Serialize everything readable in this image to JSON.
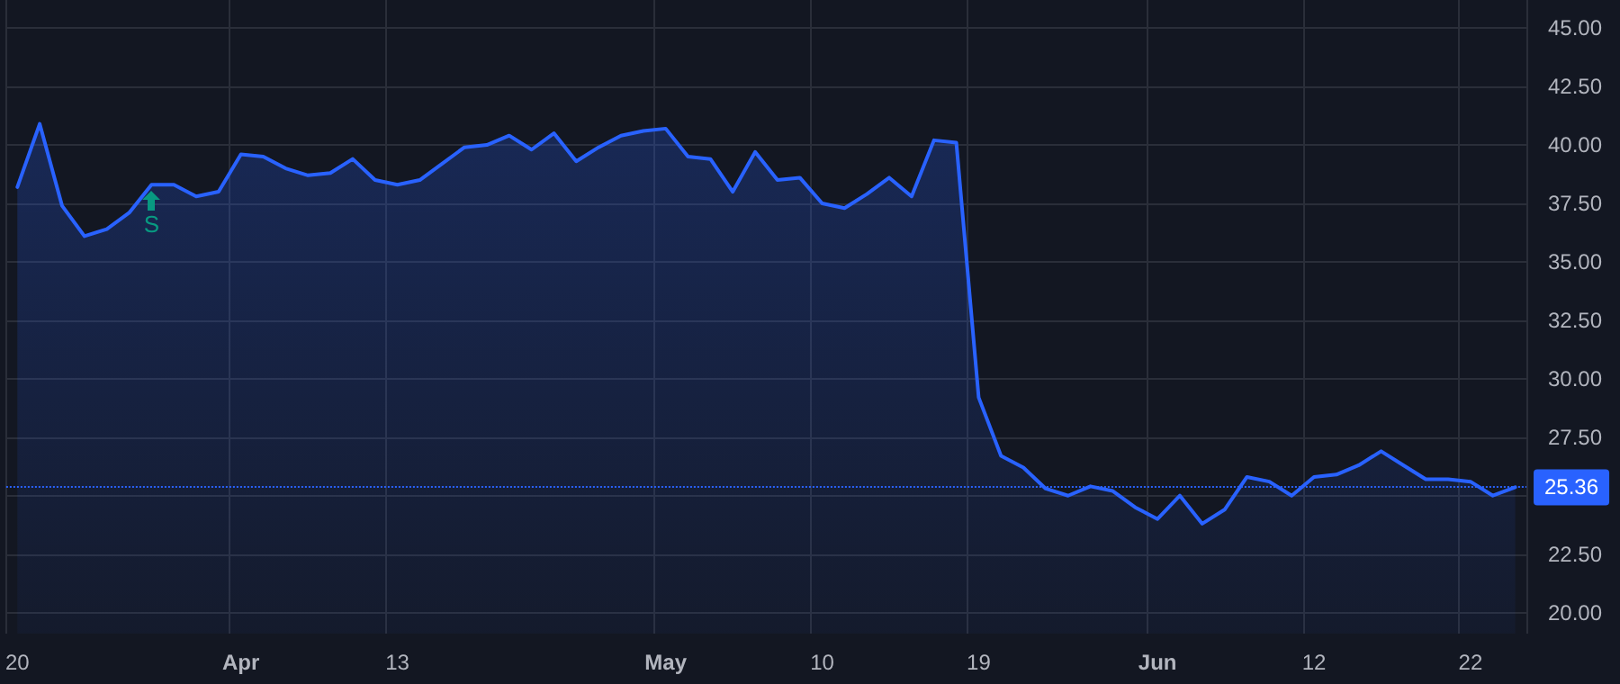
{
  "chart_data": {
    "type": "area",
    "categories": [
      "20",
      null,
      null,
      null,
      null,
      null,
      null,
      null,
      null,
      null,
      "Apr",
      null,
      null,
      null,
      null,
      null,
      null,
      "13",
      null,
      null,
      null,
      null,
      null,
      null,
      null,
      null,
      null,
      null,
      null,
      "May",
      null,
      null,
      null,
      null,
      null,
      null,
      "10",
      null,
      null,
      null,
      null,
      null,
      null,
      "19",
      null,
      null,
      null,
      null,
      null,
      null,
      null,
      "Jun",
      null,
      null,
      null,
      null,
      null,
      null,
      "12",
      null,
      null,
      null,
      null,
      null,
      null,
      "22",
      null,
      null
    ],
    "series": [
      {
        "color": "#2962ff",
        "values": [
          38.2,
          40.9,
          37.4,
          36.1,
          36.4,
          37.1,
          38.3,
          38.3,
          37.8,
          38.0,
          39.6,
          39.5,
          39.0,
          38.7,
          38.8,
          39.4,
          38.5,
          38.3,
          38.5,
          39.2,
          39.9,
          40.0,
          40.4,
          39.8,
          40.5,
          39.3,
          39.9,
          40.4,
          40.6,
          40.7,
          39.5,
          39.4,
          38.0,
          39.7,
          38.5,
          38.6,
          37.5,
          37.3,
          37.9,
          38.6,
          37.8,
          40.2,
          40.1,
          29.2,
          26.7,
          26.2,
          25.3,
          25.0,
          25.4,
          25.2,
          24.5,
          24.0,
          25.0,
          23.8,
          24.4,
          25.8,
          25.6,
          25.0,
          25.8,
          25.9,
          26.3,
          26.9,
          26.3,
          25.7,
          25.7,
          25.6,
          25.0,
          25.36
        ]
      }
    ],
    "ylim": [
      19.1,
      46.2
    ],
    "yticks": [
      {
        "value": 20,
        "label": "20.00"
      },
      {
        "value": 22.5,
        "label": "22.50"
      },
      {
        "value": 25,
        "label": null
      },
      {
        "value": 27.5,
        "label": "27.50"
      },
      {
        "value": 30,
        "label": "30.00"
      },
      {
        "value": 32.5,
        "label": "32.50"
      },
      {
        "value": 35,
        "label": "35.00"
      },
      {
        "value": 37.5,
        "label": "37.50"
      },
      {
        "value": 40,
        "label": "40.00"
      },
      {
        "value": 42.5,
        "label": "42.50"
      },
      {
        "value": 45,
        "label": "45.00"
      }
    ],
    "ref_lines": [
      {
        "axis": "y",
        "value": 25.36,
        "label": "25.36",
        "color": "#2962ff",
        "line_style": "dotted"
      }
    ],
    "annotations": [
      "S"
    ],
    "grid": true,
    "marker": "none",
    "line_style": "solid"
  }
}
